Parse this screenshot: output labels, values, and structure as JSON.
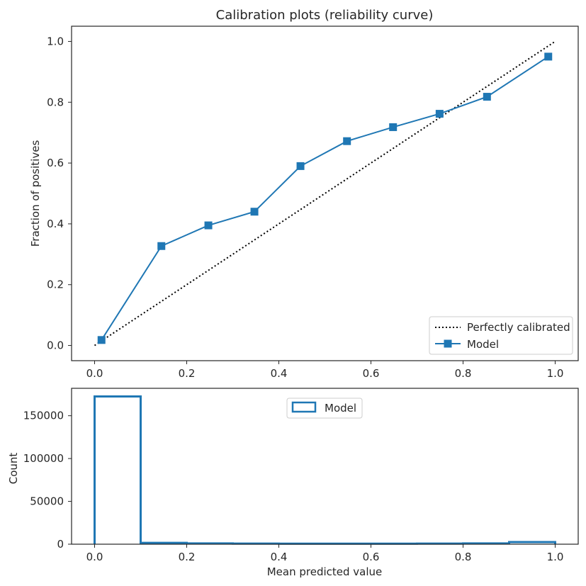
{
  "chart_data": [
    {
      "type": "line",
      "title": "Calibration plots  (reliability curve)",
      "xlabel": "",
      "ylabel": "Fraction of positives",
      "xlim": [
        -0.05,
        1.05
      ],
      "ylim": [
        -0.05,
        1.05
      ],
      "xticks": [
        "0.0",
        "0.2",
        "0.4",
        "0.6",
        "0.8",
        "1.0"
      ],
      "yticks": [
        "0.0",
        "0.2",
        "0.4",
        "0.6",
        "0.8",
        "1.0"
      ],
      "grid": false,
      "legend_position": "lower-right",
      "series": [
        {
          "name": "Perfectly calibrated",
          "style": "dotted",
          "color": "#000000",
          "x": [
            0.0,
            1.0
          ],
          "y": [
            0.0,
            1.0
          ]
        },
        {
          "name": "Model",
          "style": "solid-square-markers",
          "color": "#1f77b4",
          "x": [
            0.015,
            0.145,
            0.247,
            0.347,
            0.447,
            0.548,
            0.648,
            0.749,
            0.852,
            0.985
          ],
          "y": [
            0.018,
            0.327,
            0.395,
            0.44,
            0.59,
            0.672,
            0.718,
            0.762,
            0.818,
            0.95
          ]
        }
      ]
    },
    {
      "type": "histogram",
      "title": "",
      "xlabel": "Mean predicted value",
      "ylabel": "Count",
      "xlim": [
        -0.05,
        1.05
      ],
      "ylim": [
        0,
        182000
      ],
      "xticks": [
        "0.0",
        "0.2",
        "0.4",
        "0.6",
        "0.8",
        "1.0"
      ],
      "yticks": [
        "0",
        "50000",
        "100000",
        "150000"
      ],
      "grid": false,
      "legend_position": "upper-center",
      "series": [
        {
          "name": "Model",
          "style": "step-outline",
          "color": "#1f77b4",
          "bin_edges": [
            0.0,
            0.1,
            0.2,
            0.3,
            0.4,
            0.5,
            0.6,
            0.7,
            0.8,
            0.9,
            1.0
          ],
          "counts": [
            172500,
            1500,
            900,
            700,
            600,
            600,
            600,
            700,
            900,
            2500
          ]
        }
      ]
    }
  ]
}
